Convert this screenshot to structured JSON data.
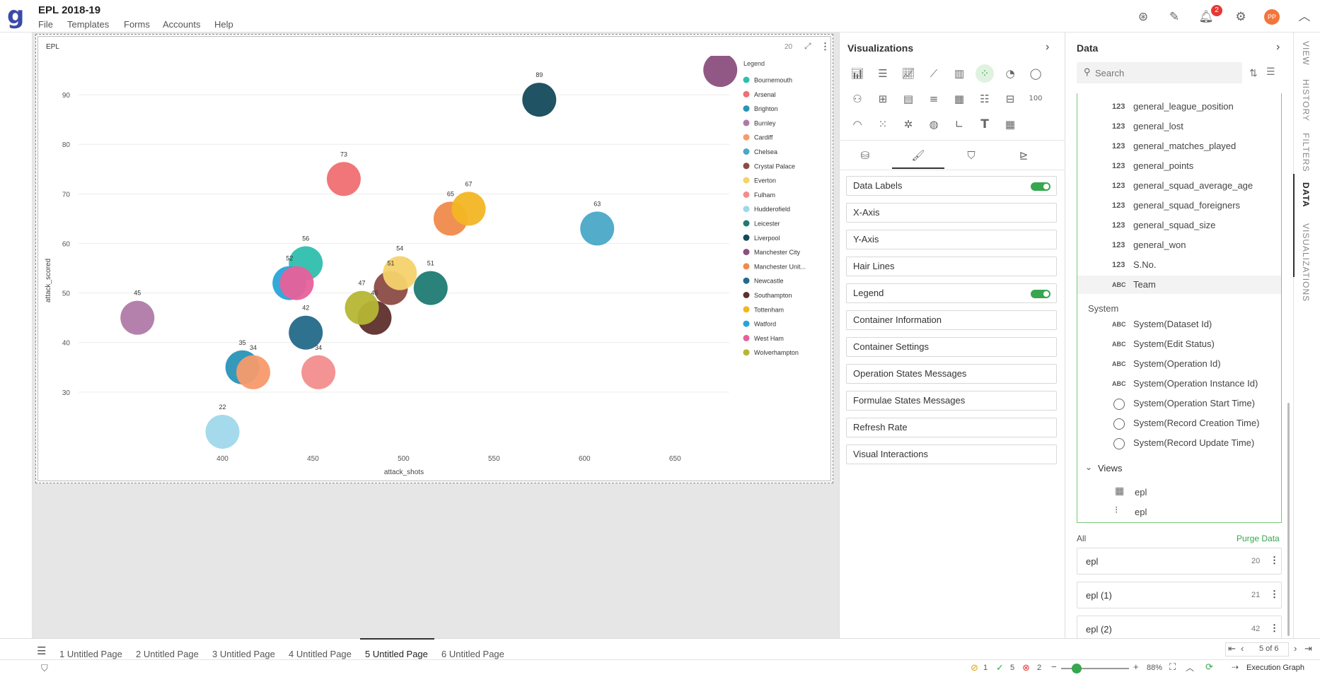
{
  "app": {
    "title": "EPL 2018-19",
    "logo": "g"
  },
  "menu": [
    "File",
    "Templates",
    "Forms",
    "Accounts",
    "Help"
  ],
  "header": {
    "notifications_count": "2",
    "avatar_initials": "PP"
  },
  "chart_panel": {
    "title": "EPL",
    "count": "20"
  },
  "chart_data": {
    "type": "scatter",
    "xlabel": "attack_shots",
    "ylabel": "attack_scored",
    "legend_title": "Legend",
    "legend_position": "right",
    "x_ticks": [
      400,
      450,
      500,
      550,
      600,
      650
    ],
    "y_ticks": [
      30,
      40,
      50,
      60,
      70,
      80,
      90
    ],
    "xlim": [
      340,
      680
    ],
    "ylim": [
      18,
      97
    ],
    "points": [
      {
        "team": "Bournemouth",
        "x": 446,
        "y": 56,
        "label": "56",
        "color": "#2ebfad"
      },
      {
        "team": "Arsenal",
        "x": 467,
        "y": 73,
        "label": "73",
        "color": "#ef6f73"
      },
      {
        "team": "Brighton",
        "x": 411,
        "y": 35,
        "label": "35",
        "color": "#2a93b8"
      },
      {
        "team": "Burnley",
        "x": 353,
        "y": 45,
        "label": "45",
        "color": "#b07aa8"
      },
      {
        "team": "Cardiff",
        "x": 417,
        "y": 34,
        "label": "34",
        "color": "#f79a6c"
      },
      {
        "team": "Chelsea",
        "x": 607,
        "y": 63,
        "label": "63",
        "color": "#4aa8c6"
      },
      {
        "team": "Crystal Palace",
        "x": 493,
        "y": 51,
        "label": "51",
        "color": "#8c4b44"
      },
      {
        "team": "Everton",
        "x": 498,
        "y": 54,
        "label": "54",
        "color": "#f5d26b"
      },
      {
        "team": "Fulham",
        "x": 453,
        "y": 34,
        "label": "34",
        "color": "#f38d8d"
      },
      {
        "team": "Hudderofield",
        "x": 400,
        "y": 22,
        "label": "22",
        "color": "#9fd8ea"
      },
      {
        "team": "Leicester",
        "x": 515,
        "y": 51,
        "label": "51",
        "color": "#1f7b73"
      },
      {
        "team": "Liverpool",
        "x": 575,
        "y": 89,
        "label": "89",
        "color": "#144a5c"
      },
      {
        "team": "Manchester City",
        "x": 675,
        "y": 95,
        "label": "",
        "color": "#8b4f7e"
      },
      {
        "team": "Manchester Unit...",
        "x": 526,
        "y": 65,
        "label": "65",
        "color": "#f08a4b"
      },
      {
        "team": "Newcastle",
        "x": 446,
        "y": 42,
        "label": "42",
        "color": "#236a8a"
      },
      {
        "team": "Southampton",
        "x": 484,
        "y": 45,
        "label": "45",
        "color": "#5e2f2c"
      },
      {
        "team": "Tottenham",
        "x": 536,
        "y": 67,
        "label": "67",
        "color": "#f2b624"
      },
      {
        "team": "Watford",
        "x": 437,
        "y": 52,
        "label": "52",
        "color": "#27a4d8"
      },
      {
        "team": "West Ham",
        "x": 441,
        "y": 52,
        "label": "",
        "color": "#e8609b"
      },
      {
        "team": "Wolverhampton",
        "x": 477,
        "y": 47,
        "label": "47",
        "color": "#b5b634"
      }
    ]
  },
  "viz_panel": {
    "title": "Visualizations",
    "props": [
      {
        "label": "Data Labels",
        "toggle": true
      },
      {
        "label": "X-Axis",
        "toggle": false
      },
      {
        "label": "Y-Axis",
        "toggle": false
      },
      {
        "label": "Hair Lines",
        "toggle": false
      },
      {
        "label": "Legend",
        "toggle": true
      },
      {
        "label": "Container Information",
        "toggle": false
      },
      {
        "label": "Container Settings",
        "toggle": false
      },
      {
        "label": "Operation States Messages",
        "toggle": false
      },
      {
        "label": "Formulae States Messages",
        "toggle": false
      },
      {
        "label": "Refresh Rate",
        "toggle": false
      },
      {
        "label": "Visual Interactions",
        "toggle": false
      }
    ],
    "icon_100": "100"
  },
  "data_panel": {
    "title": "Data",
    "search_placeholder": "Search",
    "fields": [
      {
        "type": "123",
        "name": "general_league_position"
      },
      {
        "type": "123",
        "name": "general_lost"
      },
      {
        "type": "123",
        "name": "general_matches_played"
      },
      {
        "type": "123",
        "name": "general_points"
      },
      {
        "type": "123",
        "name": "general_squad_average_age"
      },
      {
        "type": "123",
        "name": "general_squad_foreigners"
      },
      {
        "type": "123",
        "name": "general_squad_size"
      },
      {
        "type": "123",
        "name": "general_won"
      },
      {
        "type": "123",
        "name": "S.No."
      },
      {
        "type": "ABC",
        "name": "Team"
      }
    ],
    "system_label": "System",
    "system_fields": [
      {
        "type": "ABC",
        "name": "System(Dataset Id)"
      },
      {
        "type": "ABC",
        "name": "System(Edit Status)"
      },
      {
        "type": "ABC",
        "name": "System(Operation Id)"
      },
      {
        "type": "ABC",
        "name": "System(Operation Instance Id)"
      },
      {
        "type": "clock",
        "name": "System(Operation Start Time)"
      },
      {
        "type": "clock",
        "name": "System(Record Creation Time)"
      },
      {
        "type": "clock",
        "name": "System(Record Update Time)"
      }
    ],
    "views_label": "Views",
    "views": [
      "epl",
      "epl"
    ],
    "all_label": "All",
    "purge_label": "Purge Data",
    "datasets": [
      {
        "name": "epl",
        "count": "20"
      },
      {
        "name": "epl (1)",
        "count": "21"
      },
      {
        "name": "epl (2)",
        "count": "42"
      }
    ]
  },
  "right_tabs": [
    "VIEW",
    "HISTORY",
    "FILTERS",
    "DATA",
    "VISUALIZATIONS"
  ],
  "pages": [
    "1 Untitled Page",
    "2 Untitled Page",
    "3 Untitled Page",
    "4 Untitled Page",
    "5 Untitled Page",
    "6 Untitled Page"
  ],
  "pager": "5 of 6",
  "status": {
    "warn": "1",
    "ok": "5",
    "err": "2",
    "zoom": "88%",
    "exec": "Execution Graph"
  }
}
